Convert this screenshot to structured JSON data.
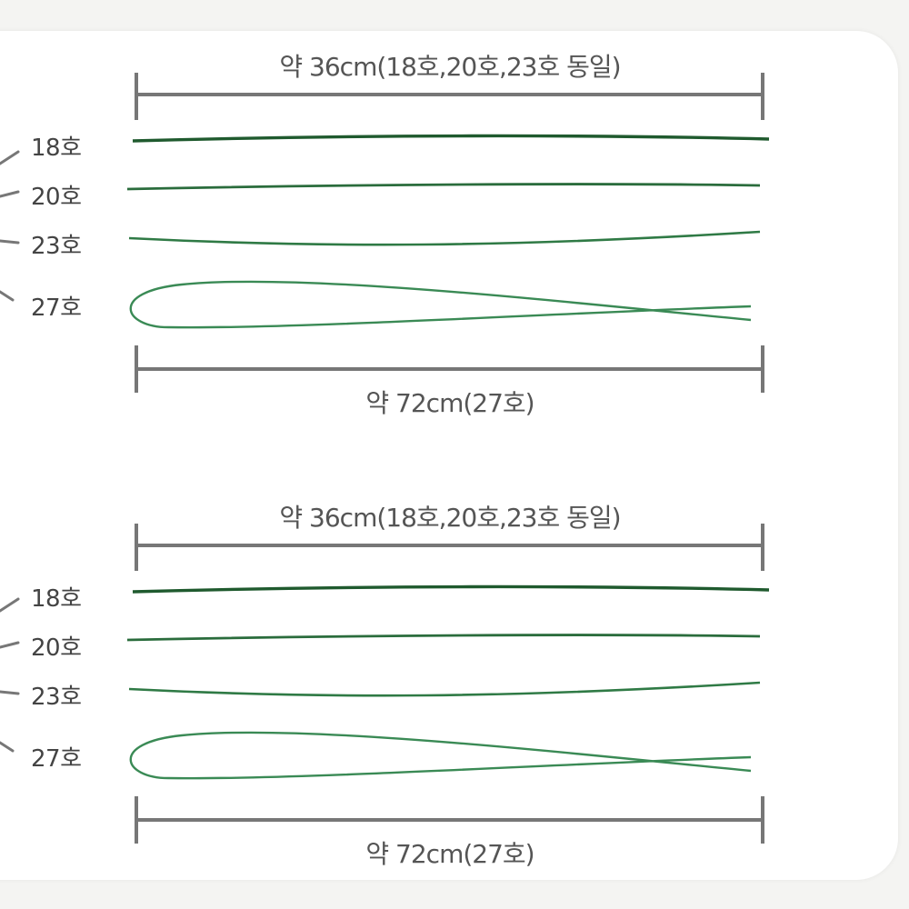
{
  "colors": {
    "background": "#f4f4f2",
    "card": "#ffffff",
    "dimension_line": "#777777",
    "wire_dark": "#1f5a2e",
    "wire_mid": "#2f7a45",
    "wire_light": "#3a8a55"
  },
  "panels": [
    {
      "top_dimension": "약 36cm(18호,20호,23호 동일)",
      "bottom_dimension": "약 72cm(27호)",
      "gauges": [
        "18호",
        "20호",
        "23호",
        "27호"
      ]
    },
    {
      "top_dimension": "약 36cm(18호,20호,23호 동일)",
      "bottom_dimension": "약 72cm(27호)",
      "gauges": [
        "18호",
        "20호",
        "23호",
        "27호"
      ]
    }
  ]
}
